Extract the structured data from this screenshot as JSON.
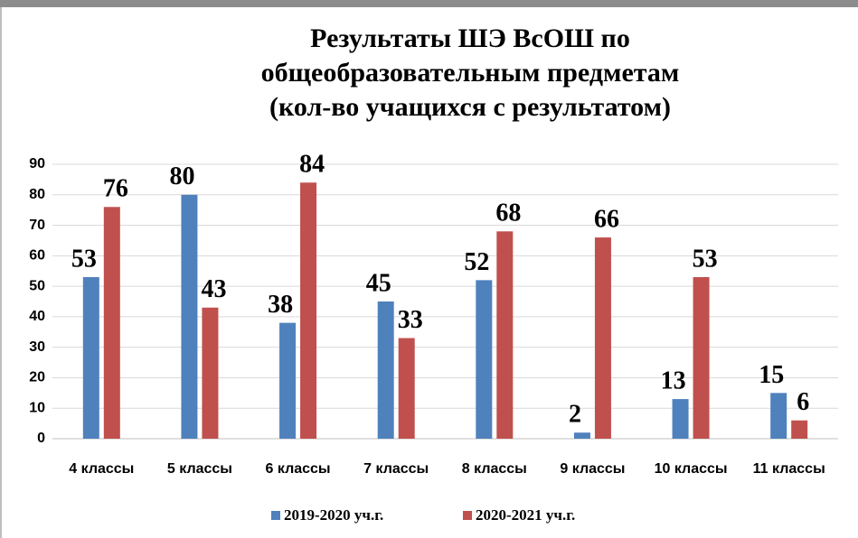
{
  "chart_data": {
    "type": "bar",
    "title": [
      "Результаты ШЭ ВсОШ по",
      "общеобразовательным предметам",
      "(кол-во учащихся с результатом)"
    ],
    "categories": [
      "4 классы",
      "5 классы",
      "6 классы",
      "7 классы",
      "8 классы",
      "9 классы",
      "10 классы",
      "11 классы"
    ],
    "series": [
      {
        "name": "2019-2020 уч.г.",
        "color": "#4f81bd",
        "values": [
          53,
          80,
          38,
          45,
          52,
          2,
          13,
          15
        ]
      },
      {
        "name": "2020-2021 уч.г.",
        "color": "#c0504d",
        "values": [
          76,
          43,
          84,
          33,
          68,
          66,
          53,
          6
        ]
      }
    ],
    "ylim": [
      0,
      90
    ],
    "yticks": [
      0,
      10,
      20,
      30,
      40,
      50,
      60,
      70,
      80,
      90
    ],
    "grid": true,
    "legend": "bottom"
  }
}
